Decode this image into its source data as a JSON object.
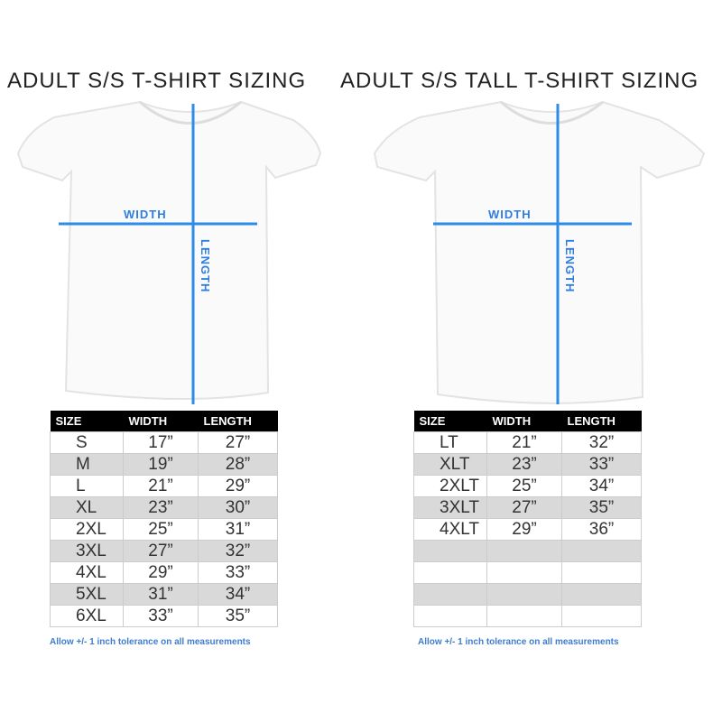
{
  "left": {
    "title": "ADULT S/S T-SHIRT SIZING",
    "width_label": "WIDTH",
    "length_label": "LENGTH",
    "headers": [
      "SIZE",
      "WIDTH",
      "LENGTH"
    ],
    "rows": [
      [
        "S",
        "17”",
        "27”"
      ],
      [
        "M",
        "19”",
        "28”"
      ],
      [
        "L",
        "21”",
        "29”"
      ],
      [
        "XL",
        "23”",
        "30”"
      ],
      [
        "2XL",
        "25”",
        "31”"
      ],
      [
        "3XL",
        "27”",
        "32”"
      ],
      [
        "4XL",
        "29”",
        "33”"
      ],
      [
        "5XL",
        "31”",
        "34”"
      ],
      [
        "6XL",
        "33”",
        "35”"
      ]
    ],
    "note": "Allow +/- 1 inch tolerance on all measurements"
  },
  "right": {
    "title": "ADULT S/S TALL T-SHIRT SIZING",
    "width_label": "WIDTH",
    "length_label": "LENGTH",
    "headers": [
      "SIZE",
      "WIDTH",
      "LENGTH"
    ],
    "rows": [
      [
        "LT",
        "21”",
        "32”"
      ],
      [
        "XLT",
        "23”",
        "33”"
      ],
      [
        "2XLT",
        "25”",
        "34”"
      ],
      [
        "3XLT",
        "27”",
        "35”"
      ],
      [
        "4XLT",
        "29”",
        "36”"
      ],
      [
        "",
        "",
        ""
      ],
      [
        "",
        "",
        ""
      ],
      [
        "",
        "",
        ""
      ],
      [
        "",
        "",
        ""
      ]
    ],
    "note": "Allow +/- 1 inch tolerance on all measurements"
  },
  "colors": {
    "measure_line": "#2e8be6",
    "note": "#3f7cd0",
    "header_bg": "#000000",
    "row_alt": "#d9d9d9"
  }
}
